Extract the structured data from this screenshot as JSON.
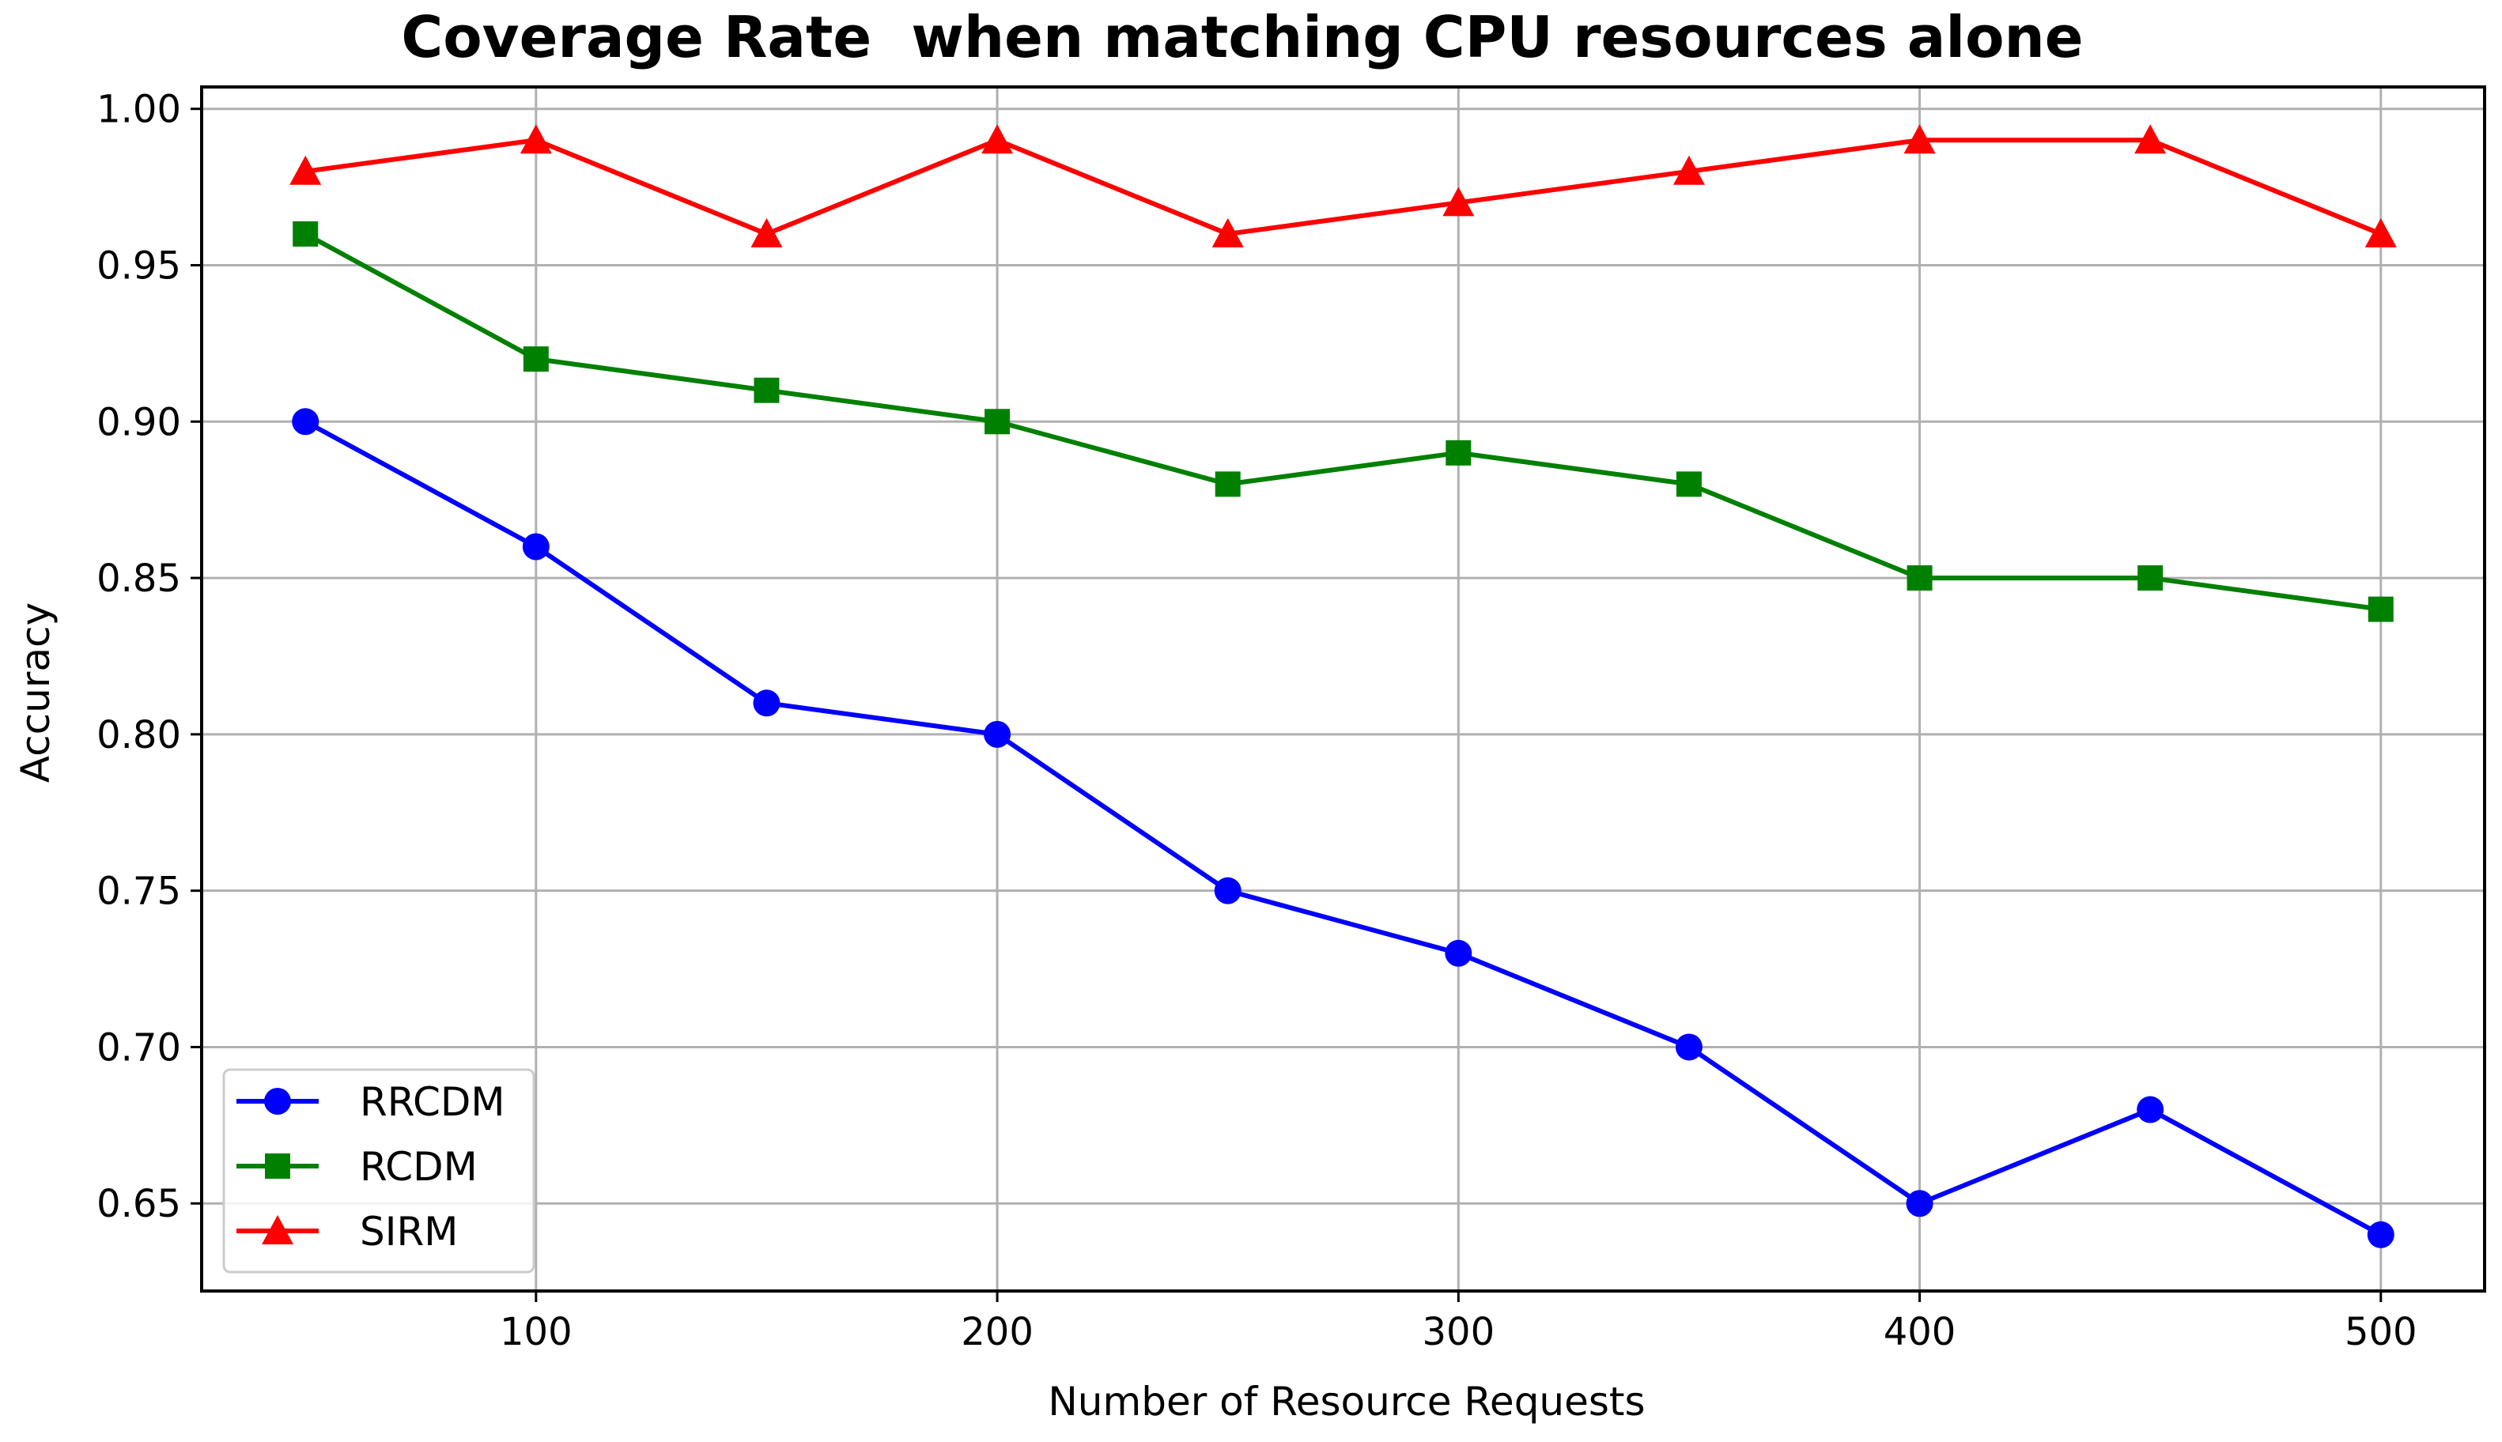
{
  "chart_data": {
    "type": "line",
    "title": "Coverage Rate  when matching CPU resources alone",
    "xlabel": "Number of Resource Requests",
    "ylabel": "Accuracy",
    "x": [
      50,
      100,
      150,
      200,
      250,
      300,
      350,
      400,
      450,
      500
    ],
    "xlim": [
      27.5,
      522.5
    ],
    "ylim": [
      0.622,
      1.007
    ],
    "xticks": [
      100,
      200,
      300,
      400,
      500
    ],
    "xtick_labels": [
      "100",
      "200",
      "300",
      "400",
      "500"
    ],
    "yticks": [
      0.65,
      0.7,
      0.75,
      0.8,
      0.85,
      0.9,
      0.95,
      1.0
    ],
    "ytick_labels": [
      "0.65",
      "0.70",
      "0.75",
      "0.80",
      "0.85",
      "0.90",
      "0.95",
      "1.00"
    ],
    "grid": true,
    "legend_position": "lower-left",
    "series": [
      {
        "name": "RRCDM",
        "color": "#0000ff",
        "marker": "circle",
        "values": [
          0.9,
          0.86,
          0.81,
          0.8,
          0.75,
          0.73,
          0.7,
          0.65,
          0.68,
          0.64
        ]
      },
      {
        "name": "RCDM",
        "color": "#008000",
        "marker": "square",
        "values": [
          0.96,
          0.92,
          0.91,
          0.9,
          0.88,
          0.89,
          0.88,
          0.85,
          0.85,
          0.84
        ]
      },
      {
        "name": "SIRM",
        "color": "#ff0000",
        "marker": "triangle",
        "values": [
          0.98,
          0.99,
          0.96,
          0.99,
          0.96,
          0.97,
          0.98,
          0.99,
          0.99,
          0.96
        ]
      }
    ]
  }
}
